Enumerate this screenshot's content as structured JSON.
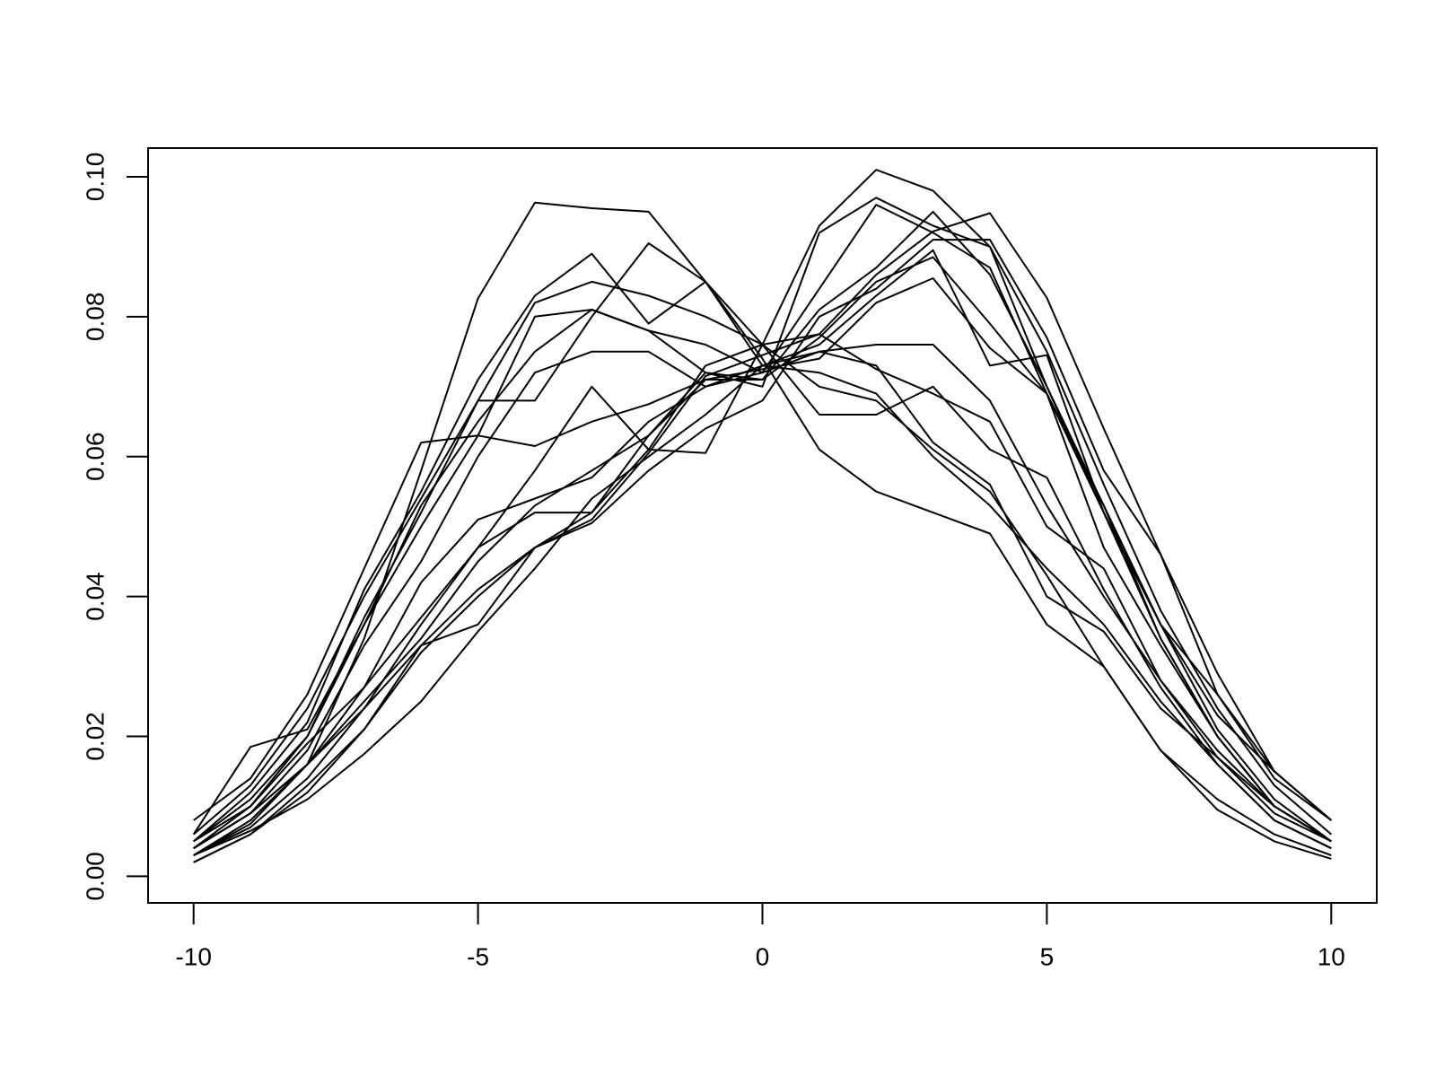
{
  "chart_data": {
    "type": "line",
    "color": "#000000",
    "x": [
      -10,
      -9,
      -8,
      -7,
      -6,
      -5,
      -4,
      -3,
      -2,
      -1,
      0,
      1,
      2,
      3,
      4,
      5,
      6,
      7,
      8,
      9,
      10
    ],
    "xlim": [
      -10.8,
      10.8
    ],
    "xticks": [
      -10,
      -5,
      0,
      5,
      10
    ],
    "ylim": [
      -0.0038,
      0.1041
    ],
    "yticks": [
      {
        "value": 0,
        "label": "0.00"
      },
      {
        "value": 0.02,
        "label": "0.02"
      },
      {
        "value": 0.04,
        "label": "0.04"
      },
      {
        "value": 0.06,
        "label": "0.06"
      },
      {
        "value": 0.08,
        "label": "0.08"
      },
      {
        "value": 0.1,
        "label": "0.10"
      }
    ],
    "series": [
      {
        "values": [
          0.003,
          0.0075,
          0.016,
          0.034,
          0.058,
          0.0826,
          0.0963,
          0.0955,
          0.095,
          0.085,
          0.074,
          0.061,
          0.055,
          0.052,
          0.049,
          0.036,
          0.03,
          0.018,
          0.0095,
          0.005,
          0.0025
        ]
      },
      {
        "values": [
          0.005,
          0.012,
          0.022,
          0.041,
          0.055,
          0.071,
          0.083,
          0.089,
          0.079,
          0.085,
          0.076,
          0.066,
          0.066,
          0.07,
          0.061,
          0.057,
          0.041,
          0.027,
          0.016,
          0.008,
          0.004
        ]
      },
      {
        "values": [
          0.004,
          0.01,
          0.02,
          0.037,
          0.052,
          0.068,
          0.068,
          0.08,
          0.0905,
          0.085,
          0.073,
          0.072,
          0.069,
          0.06,
          0.053,
          0.044,
          0.036,
          0.025,
          0.016,
          0.008,
          0.004
        ]
      },
      {
        "values": [
          0.006,
          0.013,
          0.024,
          0.04,
          0.054,
          0.068,
          0.082,
          0.085,
          0.083,
          0.08,
          0.076,
          0.07,
          0.068,
          0.061,
          0.055,
          0.043,
          0.03,
          0.018,
          0.011,
          0.006,
          0.003
        ]
      },
      {
        "values": [
          0.005,
          0.011,
          0.02,
          0.036,
          0.05,
          0.063,
          0.08,
          0.081,
          0.078,
          0.076,
          0.072,
          0.075,
          0.073,
          0.062,
          0.056,
          0.04,
          0.035,
          0.024,
          0.017,
          0.01,
          0.005
        ]
      },
      {
        "values": [
          0.004,
          0.009,
          0.018,
          0.033,
          0.045,
          0.06,
          0.072,
          0.075,
          0.075,
          0.07,
          0.073,
          0.075,
          0.076,
          0.076,
          0.068,
          0.053,
          0.04,
          0.028,
          0.018,
          0.01,
          0.005
        ]
      },
      {
        "values": [
          0.004,
          0.009,
          0.016,
          0.027,
          0.037,
          0.047,
          0.058,
          0.07,
          0.061,
          0.0605,
          0.076,
          0.0775,
          0.0725,
          0.069,
          0.065,
          0.05,
          0.044,
          0.028,
          0.017,
          0.009,
          0.005
        ]
      },
      {
        "values": [
          0.003,
          0.008,
          0.016,
          0.024,
          0.033,
          0.041,
          0.047,
          0.051,
          0.0605,
          0.0715,
          0.0745,
          0.0775,
          0.086,
          0.0922,
          0.0948,
          0.0827,
          0.064,
          0.046,
          0.029,
          0.015,
          0.008
        ]
      },
      {
        "values": [
          0.003,
          0.007,
          0.014,
          0.024,
          0.036,
          0.047,
          0.052,
          0.052,
          0.061,
          0.073,
          0.076,
          0.093,
          0.101,
          0.098,
          0.09,
          0.07,
          0.053,
          0.034,
          0.02,
          0.01,
          0.005
        ]
      },
      {
        "values": [
          0.004,
          0.009,
          0.016,
          0.025,
          0.034,
          0.045,
          0.053,
          0.058,
          0.063,
          0.072,
          0.07,
          0.092,
          0.097,
          0.093,
          0.09,
          0.075,
          0.056,
          0.038,
          0.024,
          0.013,
          0.006
        ]
      },
      {
        "values": [
          0.005,
          0.01,
          0.019,
          0.027,
          0.042,
          0.051,
          0.054,
          0.057,
          0.065,
          0.07,
          0.072,
          0.084,
          0.096,
          0.092,
          0.087,
          0.069,
          0.052,
          0.036,
          0.026,
          0.015,
          0.008
        ]
      },
      {
        "values": [
          0.002,
          0.006,
          0.012,
          0.021,
          0.033,
          0.036,
          0.047,
          0.052,
          0.063,
          0.071,
          0.071,
          0.081,
          0.087,
          0.095,
          0.086,
          0.07,
          0.052,
          0.036,
          0.021,
          0.011,
          0.005
        ]
      },
      {
        "values": [
          0.003,
          0.0065,
          0.011,
          0.0175,
          0.025,
          0.035,
          0.044,
          0.054,
          0.06,
          0.066,
          0.073,
          0.076,
          0.083,
          0.0895,
          0.073,
          0.0745,
          0.052,
          0.034,
          0.02,
          0.01,
          0.005
        ]
      },
      {
        "values": [
          0.006,
          0.0185,
          0.021,
          0.036,
          0.053,
          0.065,
          0.075,
          0.081,
          0.078,
          0.072,
          0.071,
          0.077,
          0.085,
          0.0885,
          0.079,
          0.069,
          0.047,
          0.033,
          0.02,
          0.01,
          0.005
        ]
      },
      {
        "values": [
          0.008,
          0.014,
          0.026,
          0.044,
          0.062,
          0.063,
          0.0615,
          0.065,
          0.0675,
          0.071,
          0.0725,
          0.074,
          0.082,
          0.0855,
          0.0755,
          0.069,
          0.053,
          0.036,
          0.023,
          0.015,
          0.008
        ]
      },
      {
        "values": [
          0.002,
          0.006,
          0.013,
          0.021,
          0.032,
          0.04,
          0.047,
          0.0505,
          0.058,
          0.064,
          0.068,
          0.08,
          0.084,
          0.091,
          0.091,
          0.077,
          0.058,
          0.046,
          0.026,
          0.014,
          0.008
        ]
      }
    ]
  }
}
